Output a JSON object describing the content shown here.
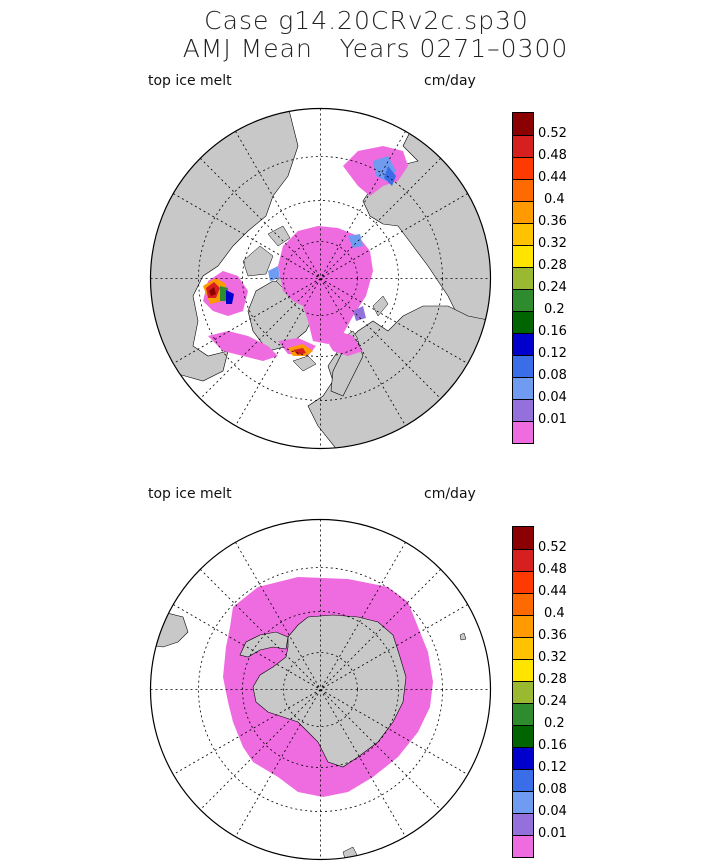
{
  "title_line1": "Case g14.20CRv2c.sp30",
  "title_line2": "AMJ Mean   Years 0271–0300",
  "panels": [
    {
      "name": "arctic",
      "variable": "top ice melt",
      "units": "cm/day"
    },
    {
      "name": "antarctic",
      "variable": "top ice melt",
      "units": "cm/day"
    }
  ],
  "legend": {
    "labels": [
      "0.52",
      "0.48",
      "0.44",
      "0.4",
      "0.36",
      "0.32",
      "0.28",
      "0.24",
      "0.2",
      "0.16",
      "0.12",
      "0.08",
      "0.04",
      "0.01"
    ],
    "colors": [
      "#8b0000",
      "#d62020",
      "#ff3a00",
      "#ff6a00",
      "#ff9a00",
      "#ffc200",
      "#ffe400",
      "#9ab830",
      "#2e8b2e",
      "#006400",
      "#0000cd",
      "#3a6ee8",
      "#6f9cf0",
      "#9370db",
      "#ee6be0"
    ]
  },
  "colors": {
    "land": "#c8c8c8",
    "ice": "#ee6be0",
    "ocean": "#ffffff"
  }
}
